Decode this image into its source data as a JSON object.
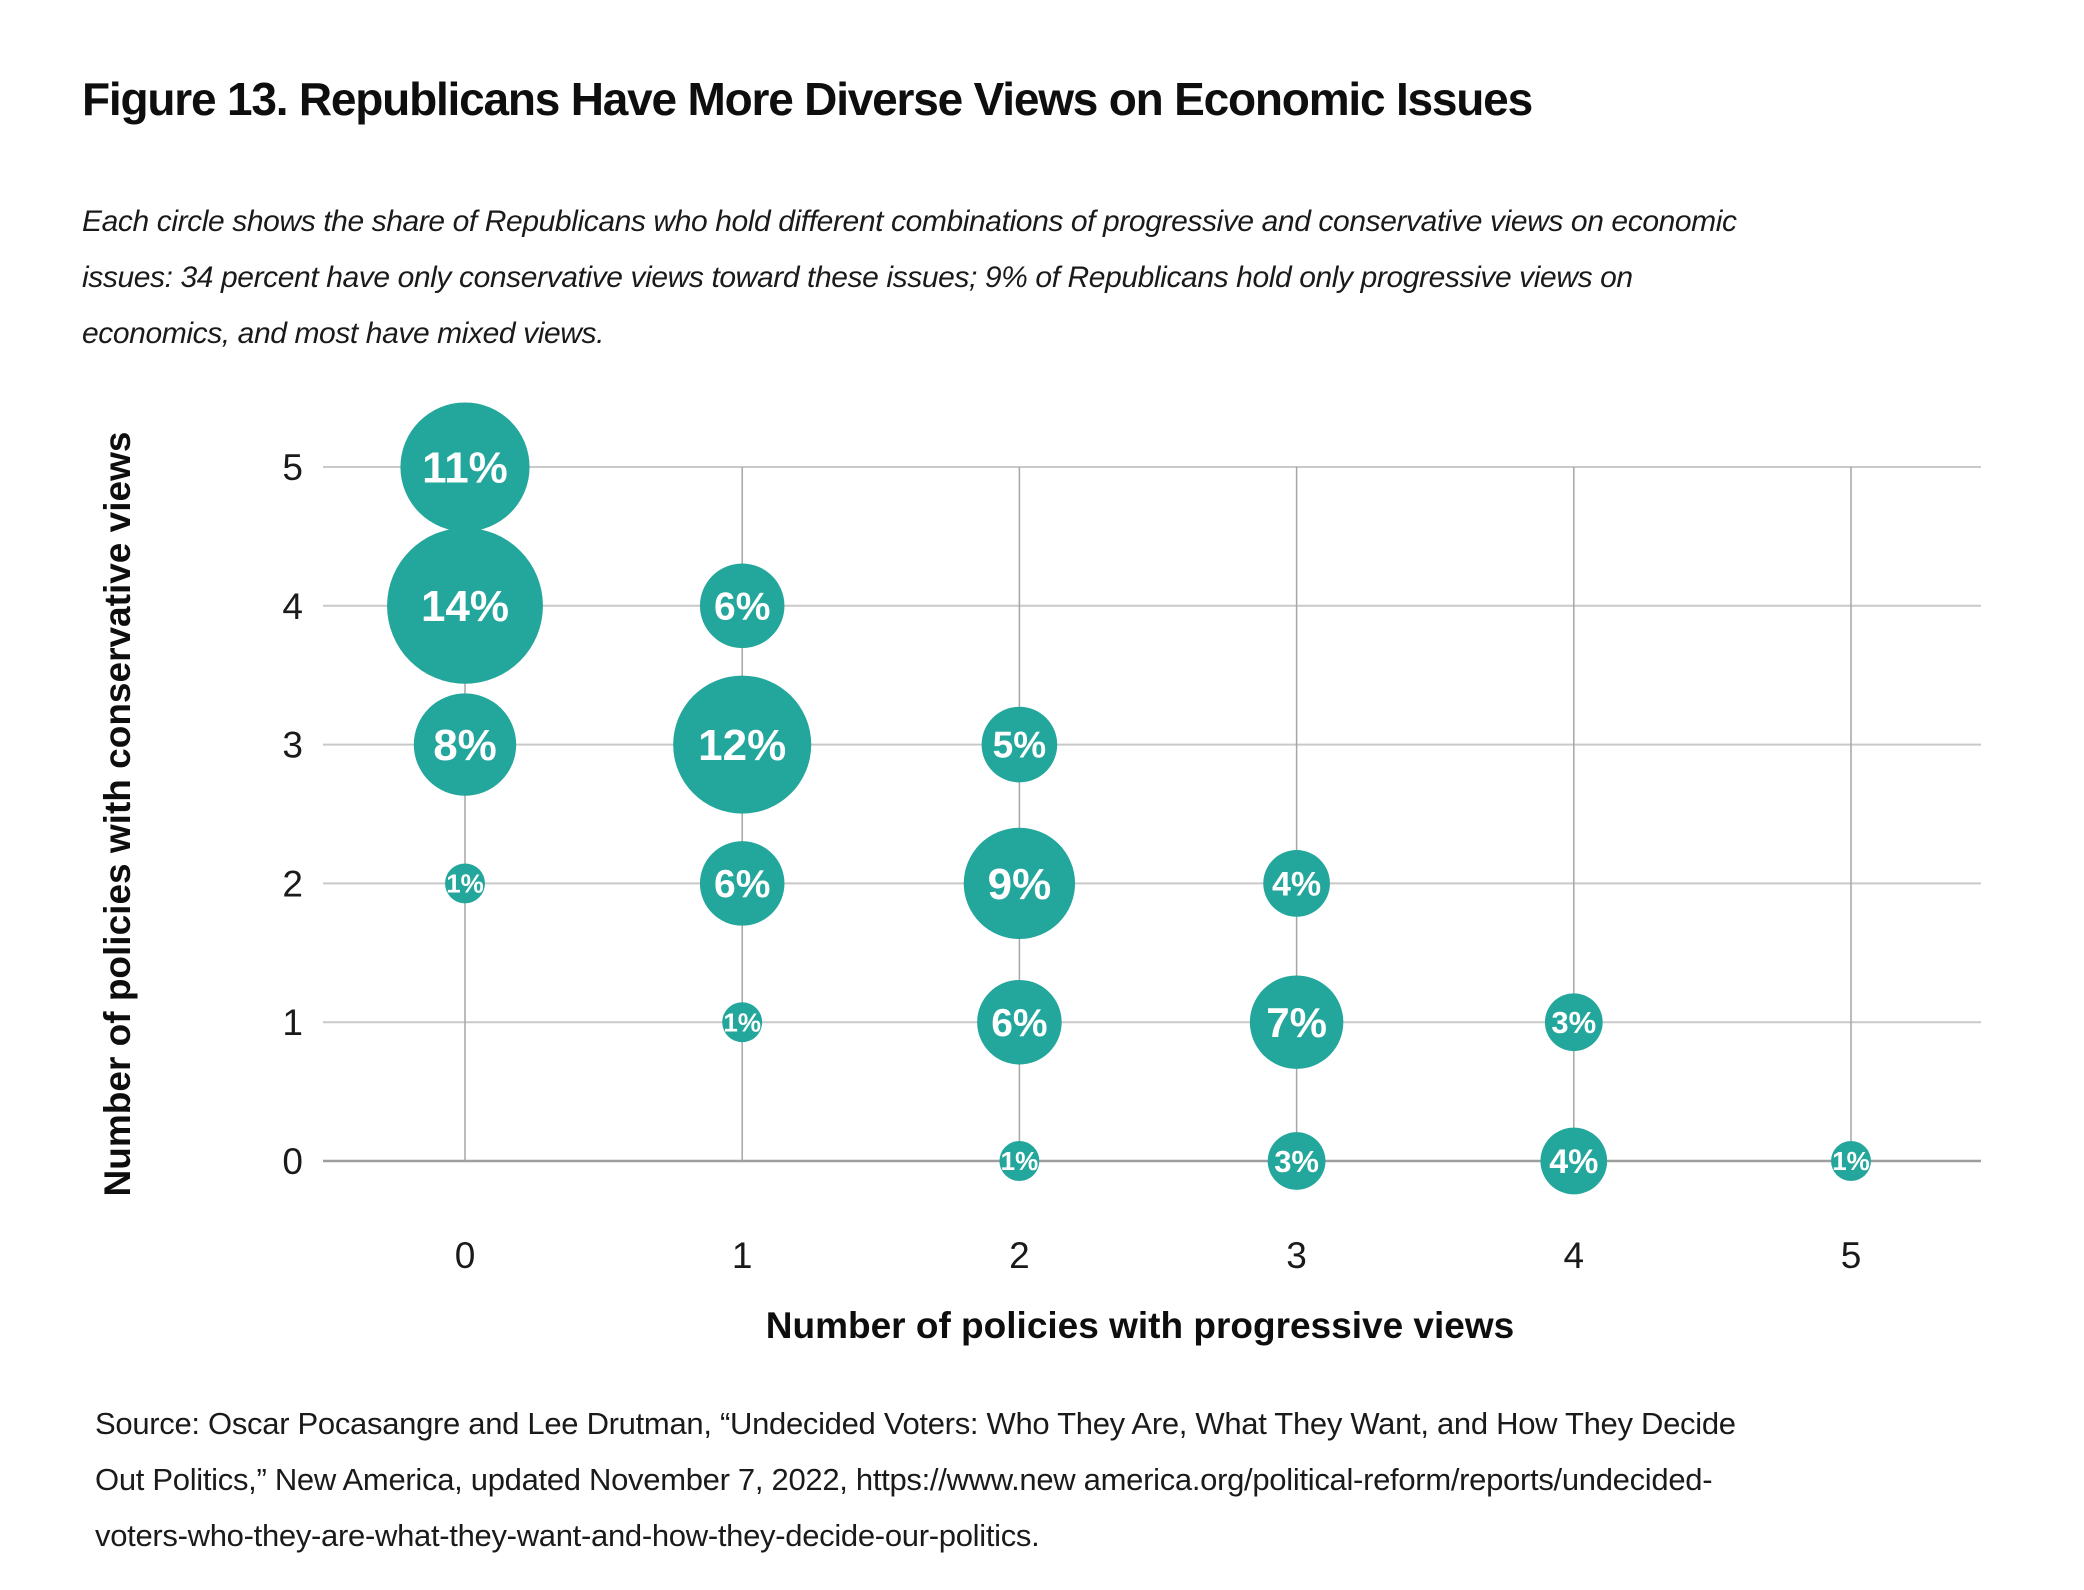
{
  "title": "Figure 13. Republicans Have More Diverse Views on Economic Issues",
  "subtitle": {
    "lines": [
      "Each circle shows the share of Republicans who hold different combinations of progressive and conservative views on economic",
      "issues: 34 percent have only conservative views toward these issues; 9% of Republicans hold only progressive views on",
      "economics, and most have mixed views."
    ]
  },
  "source": {
    "lines": [
      "Source: Oscar Pocasangre and Lee Drutman, “Undecided Voters: Who They Are, What They Want, and How They Decide",
      "Out Politics,” New America, updated November 7, 2022, https://www.new america.org/political-reform/reports/undecided-",
      "voters-who-they-are-what-they-want-and-how-they-decide-our-politics."
    ]
  },
  "chart_data": {
    "type": "scatter",
    "variant": "bubble-grid",
    "title": "Figure 13. Republicans Have More Diverse Views on Economic Issues",
    "xlabel": "Number of policies with progressive views",
    "ylabel": "Number of policies with conservative views",
    "x_ticks": [
      0,
      1,
      2,
      3,
      4,
      5
    ],
    "y_ticks": [
      0,
      1,
      2,
      3,
      4,
      5
    ],
    "xlim": [
      -0.55,
      5.55
    ],
    "ylim": [
      -0.55,
      5.55
    ],
    "grid": true,
    "legend": false,
    "value_unit": "%",
    "colors": {
      "bubble": "#23A69B",
      "bubble_label": "#ffffff",
      "grid_h": "#c9c9c9",
      "grid_v": "#a6a6a6",
      "axis_line": "#9e9e9e",
      "text": "#1a1a1a"
    },
    "points": [
      {
        "x": 0,
        "y": 5,
        "value": 11,
        "label": "11%"
      },
      {
        "x": 0,
        "y": 4,
        "value": 14,
        "label": "14%"
      },
      {
        "x": 0,
        "y": 3,
        "value": 8,
        "label": "8%"
      },
      {
        "x": 0,
        "y": 2,
        "value": 1,
        "label": "1%"
      },
      {
        "x": 1,
        "y": 4,
        "value": 6,
        "label": "6%"
      },
      {
        "x": 1,
        "y": 3,
        "value": 12,
        "label": "12%"
      },
      {
        "x": 1,
        "y": 2,
        "value": 6,
        "label": "6%"
      },
      {
        "x": 1,
        "y": 1,
        "value": 1,
        "label": "1%"
      },
      {
        "x": 2,
        "y": 3,
        "value": 5,
        "label": "5%"
      },
      {
        "x": 2,
        "y": 2,
        "value": 9,
        "label": "9%"
      },
      {
        "x": 2,
        "y": 1,
        "value": 6,
        "label": "6%"
      },
      {
        "x": 2,
        "y": 0,
        "value": 1,
        "label": "1%"
      },
      {
        "x": 3,
        "y": 2,
        "value": 4,
        "label": "4%"
      },
      {
        "x": 3,
        "y": 1,
        "value": 7,
        "label": "7%"
      },
      {
        "x": 3,
        "y": 0,
        "value": 3,
        "label": "3%"
      },
      {
        "x": 4,
        "y": 1,
        "value": 3,
        "label": "3%"
      },
      {
        "x": 4,
        "y": 0,
        "value": 4,
        "label": "4%"
      },
      {
        "x": 5,
        "y": 0,
        "value": 1,
        "label": "1%"
      }
    ]
  }
}
